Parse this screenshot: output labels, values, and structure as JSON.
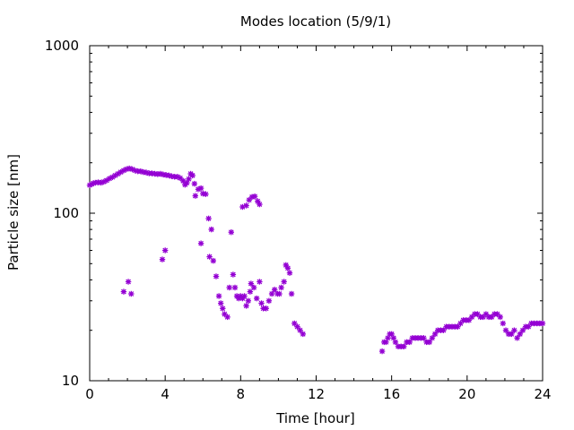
{
  "chart_data": {
    "type": "scatter",
    "title": "Modes location (5/9/1)",
    "xlabel": "Time [hour]",
    "ylabel": "Particle size [nm]",
    "xlim": [
      0,
      24
    ],
    "ylim": [
      10,
      1000
    ],
    "yscale": "log",
    "x_ticks": [
      0,
      4,
      8,
      12,
      16,
      20,
      24
    ],
    "x_tick_labels": [
      "0",
      "4",
      "8",
      "12",
      "16",
      "20",
      "24"
    ],
    "y_ticks": [
      10,
      100,
      1000
    ],
    "y_tick_labels": [
      "10",
      "100",
      "1000"
    ],
    "grid": false,
    "legend": false,
    "marker": "star",
    "color": "#9400d3",
    "series": [
      {
        "points": [
          [
            0.0,
            147
          ],
          [
            0.1,
            149
          ],
          [
            0.2,
            151
          ],
          [
            0.3,
            152
          ],
          [
            0.45,
            153
          ],
          [
            0.6,
            152
          ],
          [
            0.75,
            154
          ],
          [
            0.9,
            157
          ],
          [
            1.05,
            161
          ],
          [
            1.2,
            164
          ],
          [
            1.35,
            168
          ],
          [
            1.5,
            172
          ],
          [
            1.65,
            176
          ],
          [
            1.8,
            180
          ],
          [
            1.95,
            183
          ],
          [
            2.1,
            185
          ],
          [
            2.25,
            183
          ],
          [
            2.4,
            180
          ],
          [
            2.55,
            178
          ],
          [
            2.7,
            178
          ],
          [
            2.85,
            176
          ],
          [
            3.0,
            175
          ],
          [
            3.15,
            173
          ],
          [
            3.3,
            173
          ],
          [
            3.45,
            172
          ],
          [
            3.6,
            171
          ],
          [
            3.75,
            172
          ],
          [
            3.9,
            170
          ],
          [
            4.05,
            169
          ],
          [
            4.2,
            168
          ],
          [
            4.35,
            166
          ],
          [
            4.5,
            165
          ],
          [
            4.65,
            165
          ],
          [
            4.8,
            162
          ],
          [
            4.95,
            156
          ],
          [
            5.05,
            148
          ],
          [
            5.15,
            152
          ],
          [
            5.25,
            160
          ],
          [
            5.35,
            172
          ],
          [
            5.45,
            168
          ],
          [
            5.55,
            150
          ],
          [
            5.6,
            127
          ],
          [
            5.75,
            139
          ],
          [
            5.9,
            141
          ],
          [
            6.0,
            131
          ],
          [
            6.15,
            130
          ],
          [
            6.3,
            93
          ],
          [
            6.45,
            80
          ],
          [
            5.9,
            66
          ],
          [
            6.35,
            55
          ],
          [
            6.55,
            52
          ],
          [
            6.7,
            42
          ],
          [
            6.85,
            32
          ],
          [
            6.95,
            29
          ],
          [
            7.05,
            27
          ],
          [
            7.15,
            25
          ],
          [
            7.3,
            24
          ],
          [
            7.4,
            36
          ],
          [
            7.5,
            77
          ],
          [
            7.6,
            43
          ],
          [
            7.7,
            36
          ],
          [
            7.8,
            32
          ],
          [
            7.9,
            31
          ],
          [
            8.0,
            32
          ],
          [
            8.1,
            31
          ],
          [
            8.2,
            32
          ],
          [
            8.3,
            28
          ],
          [
            8.4,
            30
          ],
          [
            8.5,
            34
          ],
          [
            8.55,
            38
          ],
          [
            8.7,
            36
          ],
          [
            8.85,
            31
          ],
          [
            9.0,
            39
          ],
          [
            8.1,
            109
          ],
          [
            8.3,
            111
          ],
          [
            8.45,
            120
          ],
          [
            8.6,
            125
          ],
          [
            8.75,
            126
          ],
          [
            8.9,
            118
          ],
          [
            9.0,
            113
          ],
          [
            9.1,
            29
          ],
          [
            9.2,
            27
          ],
          [
            9.35,
            27
          ],
          [
            9.5,
            30
          ],
          [
            9.65,
            33
          ],
          [
            9.8,
            35
          ],
          [
            9.95,
            33
          ],
          [
            10.05,
            33
          ],
          [
            10.15,
            36
          ],
          [
            10.3,
            39
          ],
          [
            10.4,
            49
          ],
          [
            10.5,
            47
          ],
          [
            10.6,
            44
          ],
          [
            10.7,
            33
          ],
          [
            10.85,
            22
          ],
          [
            11.0,
            21
          ],
          [
            11.15,
            20
          ],
          [
            11.3,
            19
          ],
          [
            1.8,
            34
          ],
          [
            2.05,
            39
          ],
          [
            2.2,
            33
          ],
          [
            3.85,
            53
          ],
          [
            4.0,
            60
          ],
          [
            15.5,
            15
          ],
          [
            15.6,
            17
          ],
          [
            15.7,
            17
          ],
          [
            15.8,
            18
          ],
          [
            15.9,
            19
          ],
          [
            16.0,
            19
          ],
          [
            16.1,
            18
          ],
          [
            16.2,
            17
          ],
          [
            16.35,
            16
          ],
          [
            16.5,
            16
          ],
          [
            16.65,
            16
          ],
          [
            16.8,
            17
          ],
          [
            16.95,
            17
          ],
          [
            17.1,
            18
          ],
          [
            17.25,
            18
          ],
          [
            17.4,
            18
          ],
          [
            17.55,
            18
          ],
          [
            17.7,
            18
          ],
          [
            17.85,
            17
          ],
          [
            18.0,
            17
          ],
          [
            18.15,
            18
          ],
          [
            18.3,
            19
          ],
          [
            18.45,
            20
          ],
          [
            18.6,
            20
          ],
          [
            18.75,
            20
          ],
          [
            18.9,
            21
          ],
          [
            19.05,
            21
          ],
          [
            19.2,
            21
          ],
          [
            19.35,
            21
          ],
          [
            19.5,
            21
          ],
          [
            19.65,
            22
          ],
          [
            19.8,
            23
          ],
          [
            19.95,
            23
          ],
          [
            20.1,
            23
          ],
          [
            20.25,
            24
          ],
          [
            20.4,
            25
          ],
          [
            20.55,
            25
          ],
          [
            20.7,
            24
          ],
          [
            20.85,
            24
          ],
          [
            21.0,
            25
          ],
          [
            21.15,
            24
          ],
          [
            21.3,
            24
          ],
          [
            21.45,
            25
          ],
          [
            21.6,
            25
          ],
          [
            21.75,
            24
          ],
          [
            21.9,
            22
          ],
          [
            22.05,
            20
          ],
          [
            22.2,
            19
          ],
          [
            22.35,
            19
          ],
          [
            22.5,
            20
          ],
          [
            22.65,
            18
          ],
          [
            22.8,
            19
          ],
          [
            22.95,
            20
          ],
          [
            23.1,
            21
          ],
          [
            23.25,
            21
          ],
          [
            23.4,
            22
          ],
          [
            23.55,
            22
          ],
          [
            23.7,
            22
          ],
          [
            23.85,
            22
          ],
          [
            24.0,
            22
          ]
        ]
      }
    ]
  }
}
